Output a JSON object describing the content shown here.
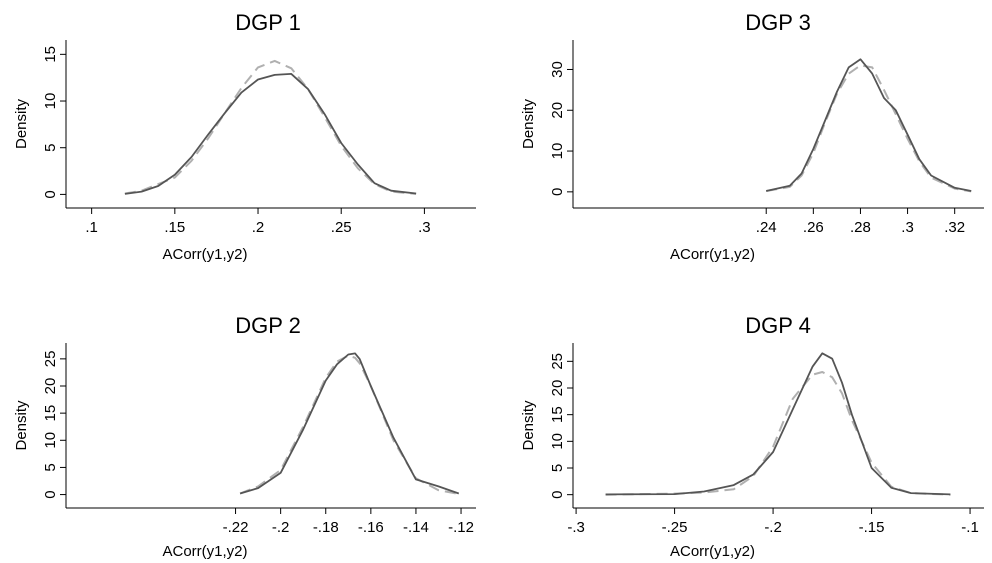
{
  "chart_data": [
    {
      "type": "line",
      "title": "DGP 1",
      "xlabel": "ACorr(y1,y2)",
      "ylabel": "Density",
      "xlim": [
        0.09,
        0.325
      ],
      "ylim": [
        -0.6,
        16
      ],
      "xticks": [
        0.1,
        0.15,
        0.2,
        0.25,
        0.3
      ],
      "xtick_labels": [
        ".1",
        ".15",
        ".2",
        ".25",
        ".3"
      ],
      "yticks": [
        0,
        5,
        10,
        15
      ],
      "ytick_labels": [
        "0",
        "5",
        "10",
        "15"
      ],
      "series": [
        {
          "style": "solid",
          "color": "#555555",
          "x": [
            0.12,
            0.13,
            0.14,
            0.15,
            0.16,
            0.17,
            0.18,
            0.19,
            0.2,
            0.21,
            0.22,
            0.23,
            0.24,
            0.25,
            0.26,
            0.27,
            0.28,
            0.295
          ],
          "y": [
            0.05,
            0.3,
            0.9,
            2.1,
            4.0,
            6.4,
            8.7,
            10.9,
            12.3,
            12.8,
            12.9,
            11.3,
            8.6,
            5.5,
            3.2,
            1.2,
            0.4,
            0.1
          ]
        },
        {
          "style": "dashed",
          "color": "#b0b0b0",
          "x": [
            0.12,
            0.13,
            0.14,
            0.15,
            0.16,
            0.17,
            0.18,
            0.19,
            0.2,
            0.21,
            0.22,
            0.23,
            0.24,
            0.25,
            0.26,
            0.27,
            0.28,
            0.295
          ],
          "y": [
            0.1,
            0.4,
            1.1,
            1.8,
            3.6,
            6.0,
            8.7,
            11.4,
            13.6,
            14.3,
            13.5,
            11.3,
            8.3,
            5.2,
            2.8,
            1.1,
            0.3,
            0.05
          ]
        }
      ]
    },
    {
      "type": "line",
      "title": "DGP 3",
      "xlabel": "ACorr(y1,y2)",
      "ylabel": "Density",
      "xlim": [
        0.1618,
        0.3282
      ],
      "ylim": [
        -2,
        36
      ],
      "xticks": [
        0.24,
        0.26,
        0.28,
        0.3,
        0.32
      ],
      "xtick_labels": [
        ".24",
        ".26",
        ".28",
        ".3",
        ".32"
      ],
      "yticks": [
        0,
        10,
        20,
        30
      ],
      "ytick_labels": [
        "0",
        "10",
        "20",
        "30"
      ],
      "series": [
        {
          "style": "solid",
          "color": "#555555",
          "x": [
            0.24,
            0.25,
            0.255,
            0.26,
            0.265,
            0.27,
            0.275,
            0.28,
            0.285,
            0.29,
            0.295,
            0.3,
            0.305,
            0.31,
            0.32,
            0.327
          ],
          "y": [
            0.2,
            1.5,
            4.5,
            10.5,
            17.5,
            24.5,
            30.5,
            32.5,
            29,
            23,
            20,
            14,
            8,
            4,
            1,
            0.2
          ]
        },
        {
          "style": "dashed",
          "color": "#b0b0b0",
          "x": [
            0.24,
            0.25,
            0.255,
            0.26,
            0.265,
            0.27,
            0.275,
            0.28,
            0.285,
            0.29,
            0.295,
            0.3,
            0.305,
            0.31,
            0.32,
            0.327
          ],
          "y": [
            0.2,
            1.2,
            4,
            9.5,
            17,
            24,
            29,
            31,
            30.5,
            25,
            19,
            13,
            7.5,
            3.5,
            0.8,
            0.1
          ]
        }
      ]
    },
    {
      "type": "line",
      "title": "DGP 2",
      "xlabel": "ACorr(y1,y2)",
      "ylabel": "Density",
      "xlim": [
        -0.2912,
        -0.1178
      ],
      "ylim": [
        -1,
        27
      ],
      "xticks": [
        -0.22,
        -0.2,
        -0.18,
        -0.16,
        -0.14,
        -0.12
      ],
      "xtick_labels": [
        "-.22",
        "-.2",
        "-.18",
        "-.16",
        "-.14",
        "-.12"
      ],
      "yticks": [
        0,
        5,
        10,
        15,
        20,
        25
      ],
      "ytick_labels": [
        "0",
        "5",
        "10",
        "15",
        "20",
        "25"
      ],
      "series": [
        {
          "style": "solid",
          "color": "#555555",
          "x": [
            -0.218,
            -0.21,
            -0.2,
            -0.19,
            -0.18,
            -0.175,
            -0.17,
            -0.167,
            -0.165,
            -0.16,
            -0.15,
            -0.14,
            -0.13,
            -0.121
          ],
          "y": [
            0.2,
            1.2,
            4,
            12,
            21,
            24,
            25.8,
            26,
            25,
            20,
            10.5,
            2.8,
            1.5,
            0.2
          ]
        },
        {
          "style": "dashed",
          "color": "#b0b0b0",
          "x": [
            -0.218,
            -0.21,
            -0.2,
            -0.19,
            -0.18,
            -0.175,
            -0.17,
            -0.167,
            -0.165,
            -0.16,
            -0.15,
            -0.14,
            -0.13,
            -0.121
          ],
          "y": [
            0.2,
            1.5,
            4.5,
            12.5,
            21.5,
            24.5,
            25.6,
            25.2,
            24.2,
            20,
            10,
            3,
            0.8,
            0.1
          ]
        }
      ]
    },
    {
      "type": "line",
      "title": "DGP 4",
      "xlabel": "ACorr(y1,y2)",
      "ylabel": "Density",
      "xlim": [
        -0.297,
        -0.098
      ],
      "ylim": [
        -1,
        27.5
      ],
      "xticks": [
        -0.3,
        -0.25,
        -0.2,
        -0.15,
        -0.1
      ],
      "xtick_labels": [
        "-.3",
        "-.25",
        "-.2",
        "-.15",
        "-.1"
      ],
      "yticks": [
        0,
        5,
        10,
        15,
        20,
        25
      ],
      "ytick_labels": [
        "0",
        "5",
        "10",
        "15",
        "20",
        "25"
      ],
      "series": [
        {
          "style": "solid",
          "color": "#555555",
          "x": [
            -0.285,
            -0.25,
            -0.235,
            -0.22,
            -0.21,
            -0.2,
            -0.19,
            -0.18,
            -0.175,
            -0.17,
            -0.165,
            -0.16,
            -0.15,
            -0.14,
            -0.13,
            -0.11
          ],
          "y": [
            0.05,
            0.1,
            0.6,
            1.8,
            3.8,
            8,
            16,
            24,
            26.5,
            25.5,
            21,
            15,
            5,
            1.3,
            0.3,
            0.05
          ]
        },
        {
          "style": "dashed",
          "color": "#b0b0b0",
          "x": [
            -0.285,
            -0.25,
            -0.235,
            -0.22,
            -0.21,
            -0.2,
            -0.19,
            -0.18,
            -0.175,
            -0.17,
            -0.165,
            -0.16,
            -0.15,
            -0.14,
            -0.13,
            -0.11
          ],
          "y": [
            0.0,
            0.2,
            0.4,
            1.0,
            3.5,
            9,
            18,
            22.5,
            23,
            22,
            19,
            14,
            6,
            1.5,
            0.3,
            0.0
          ]
        }
      ]
    }
  ]
}
